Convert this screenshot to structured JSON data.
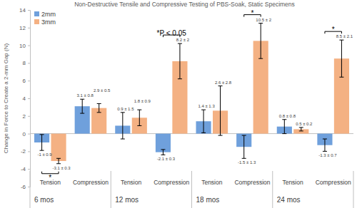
{
  "chart_data": {
    "type": "bar",
    "title": "Non-Destructive Tensile and Compressive Testing of PBS-Soak, Static Specimens",
    "y_label": "Change in Force to Create a 2-mm Gap (N)",
    "categories": [
      "Tension",
      "Compression",
      "Tension",
      "Compression",
      "Tension",
      "Compression",
      "Tension",
      "Compression"
    ],
    "groups": [
      "6 mos",
      "12 mos",
      "18 mos",
      "24 mos"
    ],
    "series": [
      {
        "name": "2mm",
        "color": "#6fa0dc",
        "values": [
          -1,
          3.1,
          0.9,
          -2.1,
          1.4,
          -1.5,
          0.8,
          -1.3
        ],
        "errors": [
          0.9,
          0.8,
          1.5,
          0.3,
          1.3,
          1.3,
          0.8,
          0.7
        ],
        "value_labels": [
          "-1 ± 0.9",
          "3.1 ± 0.8",
          "0.9 ± 1.5",
          "-2.1 ± 0.3",
          "1.4 ± 1.3",
          "-1.5 ± 1.3",
          "0.8 ± 0.8",
          "-1.3 ± 0.7"
        ]
      },
      {
        "name": "3mm",
        "color": "#f4b183",
        "values": [
          -3.1,
          2.9,
          1.8,
          8.2,
          2.6,
          10.5,
          0.5,
          8.5
        ],
        "errors": [
          0.3,
          0.5,
          0.9,
          2,
          2.8,
          2,
          0.2,
          2.1
        ],
        "value_labels": [
          "-3.1 ± 0.3",
          "2.9 ± 0.5",
          "1.8 ± 0.9",
          "8.2 ± 2",
          "2.6 ± 2.8",
          "10.5 ± 2",
          "0.5 ± 0.2",
          "8.5 ± 2.1"
        ]
      }
    ],
    "significance": [
      "*",
      null,
      null,
      "*P < 0.05",
      null,
      "*",
      null,
      "*"
    ],
    "ylim": [
      -6,
      14
    ],
    "yticks": [
      -6,
      -4,
      -2,
      0,
      2,
      4,
      6,
      8,
      10,
      12,
      14
    ],
    "grid": false,
    "legend": "top-left",
    "data_labels": true
  }
}
